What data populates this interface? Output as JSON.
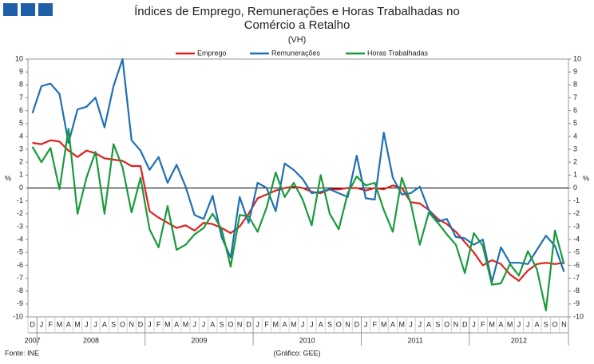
{
  "chart_data": {
    "type": "line",
    "title": "Índices de Emprego, Remunerações e Horas Trabalhadas no Comércio a Retalho",
    "subtitle": "(VH)",
    "source": "Fonte: INE",
    "credit": "(Gráfico: GEE)",
    "ylabel": "%",
    "y2label": "%",
    "categories": [
      "D",
      "J",
      "F",
      "M",
      "A",
      "M",
      "J",
      "J",
      "A",
      "S",
      "O",
      "N",
      "D",
      "J",
      "F",
      "M",
      "A",
      "M",
      "J",
      "J",
      "A",
      "S",
      "O",
      "N",
      "D",
      "J",
      "F",
      "M",
      "A",
      "M",
      "J",
      "J",
      "A",
      "S",
      "O",
      "N",
      "D",
      "J",
      "F",
      "M",
      "A",
      "M",
      "J",
      "J",
      "A",
      "S",
      "O",
      "N",
      "D",
      "J",
      "F",
      "M",
      "A",
      "M",
      "J",
      "J",
      "A",
      "S",
      "O",
      "N"
    ],
    "years": [
      "2007",
      "2008",
      "2009",
      "2010",
      "2011",
      "2012"
    ],
    "series": [
      {
        "name": "Emprego",
        "color": "#e02020",
        "values": [
          3.5,
          3.4,
          3.7,
          3.6,
          2.9,
          2.4,
          2.9,
          2.7,
          2.3,
          2.2,
          2.1,
          1.7,
          1.7,
          -1.8,
          -2.3,
          -2.7,
          -3.1,
          -2.9,
          -3.3,
          -2.7,
          -2.8,
          -3.1,
          -3.5,
          -3.0,
          -2.0,
          -0.8,
          -0.5,
          -0.2,
          0.0,
          0.1,
          0.0,
          -0.3,
          -0.4,
          -0.1,
          -0.1,
          0.0,
          0.0,
          -0.2,
          0.0,
          -0.1,
          0.2,
          0.0,
          -1.1,
          -1.2,
          -1.7,
          -2.4,
          -2.8,
          -3.4,
          -4.2,
          -5.0,
          -6.0,
          -5.6,
          -5.9,
          -6.7,
          -7.2,
          -6.4,
          -5.9,
          -5.8,
          -5.9,
          -5.8
        ]
      },
      {
        "name": "Remunerações",
        "color": "#1f6fb4",
        "values": [
          5.8,
          7.9,
          8.1,
          7.3,
          3.5,
          6.1,
          6.3,
          7.0,
          4.7,
          7.9,
          10.0,
          3.7,
          2.9,
          1.4,
          2.4,
          0.4,
          1.8,
          0.1,
          -2.1,
          -2.4,
          -0.6,
          -3.8,
          -5.4,
          -0.7,
          -2.7,
          0.4,
          0.0,
          -1.8,
          1.9,
          1.4,
          0.7,
          -0.4,
          -0.3,
          -0.1,
          -0.4,
          -0.7,
          2.5,
          -0.8,
          -0.9,
          4.3,
          0.8,
          -0.5,
          -0.4,
          0.1,
          -1.7,
          -2.6,
          -2.4,
          -3.8,
          -3.9,
          -4.4,
          -4.0,
          -7.3,
          -4.6,
          -5.8,
          -5.8,
          -5.9,
          -4.8,
          -3.7,
          -4.5,
          -6.5
        ]
      },
      {
        "name": "Horas Trabalhadas",
        "color": "#1a9a3a",
        "values": [
          3.2,
          2.0,
          3.1,
          -0.1,
          4.6,
          -2.0,
          0.8,
          2.8,
          -2.0,
          3.4,
          1.6,
          -1.9,
          0.8,
          -3.2,
          -4.6,
          -1.4,
          -4.8,
          -4.4,
          -3.6,
          -3.1,
          -2.0,
          -3.2,
          -6.1,
          -2.1,
          -2.2,
          -3.4,
          -1.5,
          1.2,
          -0.7,
          0.4,
          -0.9,
          -2.9,
          1.0,
          -2.0,
          -3.2,
          -0.4,
          0.9,
          0.2,
          0.4,
          -1.7,
          -3.4,
          0.8,
          -1.2,
          -4.4,
          -1.9,
          -2.7,
          -3.6,
          -4.4,
          -6.6,
          -3.5,
          -4.5,
          -7.5,
          -7.4,
          -5.9,
          -6.8,
          -4.9,
          -6.3,
          -9.5,
          -3.3,
          -5.9
        ]
      }
    ],
    "ylim": [
      -10,
      10
    ],
    "yticks": [
      -10,
      -9,
      -8,
      -7,
      -6,
      -5,
      -4,
      -3,
      -2,
      -1,
      0,
      1,
      2,
      3,
      4,
      5,
      6,
      7,
      8,
      9,
      10
    ],
    "y2lim": [
      -10,
      10
    ],
    "y2ticks": [
      -10,
      -9,
      -8,
      -7,
      -6,
      -5,
      -4,
      -3,
      -2,
      -1,
      0,
      1,
      2,
      3,
      4,
      5,
      6,
      7,
      8,
      9,
      10
    ],
    "legend": "top"
  }
}
